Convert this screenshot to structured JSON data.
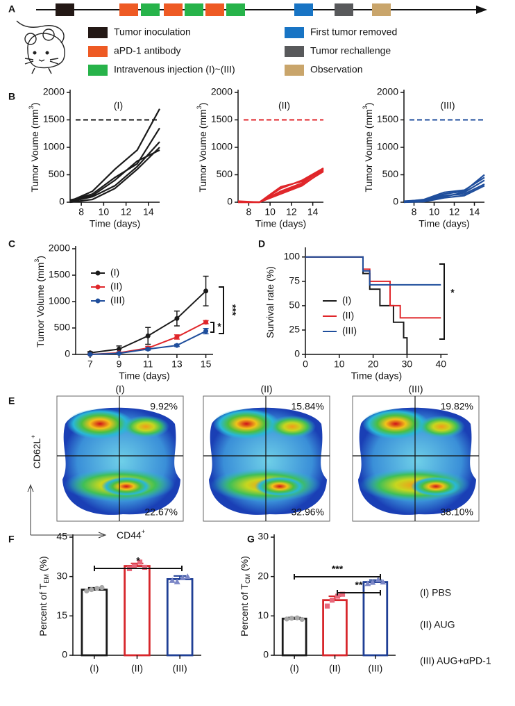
{
  "panel_labels": [
    "A",
    "B",
    "C",
    "D",
    "E",
    "F",
    "G"
  ],
  "timeline": {
    "legend": [
      {
        "label": "Tumor inoculation",
        "color": "#231815"
      },
      {
        "label": "aPD-1 antibody",
        "color": "#ee5a24"
      },
      {
        "label": "Intravenous injection (I)~(III)",
        "color": "#27b34a"
      },
      {
        "label": "First tumor removed",
        "color": "#1874c4"
      },
      {
        "label": "Tumor rechallenge",
        "color": "#58595b"
      },
      {
        "label": "Observation",
        "color": "#c9a56b"
      }
    ]
  },
  "flow": {
    "ylabel": {
      "text": "CD62L",
      "sup": "+"
    },
    "xlabel": {
      "text": "CD44",
      "sup": "+"
    },
    "panels": [
      {
        "title": "(I)",
        "color": "#1a1a1a",
        "upper": "9.92%",
        "lower": "22.67%"
      },
      {
        "title": "(II)",
        "color": "#d7262b",
        "upper": "15.84%",
        "lower": "32.96%"
      },
      {
        "title": "(III)",
        "color": "#1f3f95",
        "upper": "19.82%",
        "lower": "38.10%"
      }
    ],
    "label_color": "#d1175f"
  },
  "groups": [
    {
      "label": "(I) PBS",
      "color": "#1a1a1a"
    },
    {
      "label": "(II) AUG",
      "color": "#d7262b"
    },
    {
      "label": "(III) AUG+αPD-1",
      "color": "#1f3f95"
    }
  ],
  "chart_data": [
    {
      "type": "line",
      "title": "(I)",
      "title_color": "#1a1a1a",
      "xlabel": "Time (days)",
      "ylabel": {
        "text": "Tumor Voume (mm",
        "sup": "3",
        "end": ")"
      },
      "xlim": [
        7,
        15
      ],
      "xticks": [
        8,
        10,
        12,
        14
      ],
      "ylim": [
        0,
        2000
      ],
      "yticks": [
        0,
        500,
        1000,
        1500,
        2000
      ],
      "hline": 1500,
      "hline_color": "#1a1a1a",
      "x": [
        7,
        9,
        11,
        13,
        15
      ],
      "series": [
        {
          "color": "#1a1a1a",
          "values": [
            20,
            200,
            600,
            950,
            1700
          ]
        },
        {
          "color": "#1a1a1a",
          "values": [
            30,
            150,
            450,
            700,
            1350
          ]
        },
        {
          "color": "#1a1a1a",
          "values": [
            10,
            100,
            300,
            650,
            1100
          ]
        },
        {
          "color": "#1a1a1a",
          "values": [
            0,
            50,
            250,
            600,
            1000
          ]
        },
        {
          "color": "#1a1a1a",
          "values": [
            40,
            120,
            400,
            750,
            950
          ]
        }
      ]
    },
    {
      "type": "line",
      "title": "(II)",
      "title_color": "#d7262b",
      "xlabel": "Time (days)",
      "ylabel": {
        "text": "Tumor Voume (mm",
        "sup": "3",
        "end": ")"
      },
      "xlim": [
        7,
        15
      ],
      "xticks": [
        8,
        10,
        12,
        14
      ],
      "ylim": [
        0,
        2000
      ],
      "yticks": [
        0,
        500,
        1000,
        1500,
        2000
      ],
      "hline": 1500,
      "hline_color": "#e0262a",
      "x": [
        7,
        9,
        11,
        13,
        15
      ],
      "series": [
        {
          "color": "#e0262a",
          "values": [
            0,
            0,
            200,
            350,
            600
          ]
        },
        {
          "color": "#e0262a",
          "values": [
            10,
            0,
            250,
            400,
            620
          ]
        },
        {
          "color": "#e0262a",
          "values": [
            0,
            0,
            150,
            300,
            580
          ]
        },
        {
          "color": "#e0262a",
          "values": [
            20,
            0,
            280,
            380,
            600
          ]
        },
        {
          "color": "#e0262a",
          "values": [
            0,
            0,
            180,
            320,
            560
          ]
        }
      ]
    },
    {
      "type": "line",
      "title": "(III)",
      "title_color": "#1f3f95",
      "xlabel": "Time (days)",
      "ylabel": {
        "text": "Tumor Voume (mm",
        "sup": "3",
        "end": ")"
      },
      "xlim": [
        7,
        15
      ],
      "xticks": [
        8,
        10,
        12,
        14
      ],
      "ylim": [
        0,
        2000
      ],
      "yticks": [
        0,
        500,
        1000,
        1500,
        2000
      ],
      "hline": 1500,
      "hline_color": "#1f4e9c",
      "x": [
        7,
        9,
        11,
        13,
        15
      ],
      "series": [
        {
          "color": "#1f4e9c",
          "values": [
            0,
            30,
            150,
            200,
            500
          ]
        },
        {
          "color": "#1f4e9c",
          "values": [
            10,
            50,
            180,
            220,
            450
          ]
        },
        {
          "color": "#1f4e9c",
          "values": [
            0,
            20,
            100,
            180,
            400
          ]
        },
        {
          "color": "#1f4e9c",
          "values": [
            20,
            40,
            120,
            150,
            330
          ]
        },
        {
          "color": "#1f4e9c",
          "values": [
            0,
            10,
            80,
            120,
            300
          ]
        }
      ]
    },
    {
      "type": "line",
      "xlabel": "Time (days)",
      "ylabel": {
        "text": "Tumor Volume (mm",
        "sup": "3",
        "end": ")"
      },
      "xlim": [
        6,
        15.5
      ],
      "xticks": [
        7,
        9,
        11,
        13,
        15
      ],
      "ylim": [
        0,
        2000
      ],
      "yticks": [
        0,
        500,
        1000,
        1500,
        2000
      ],
      "legend": "upper left",
      "markers": true,
      "x": [
        7,
        9,
        11,
        13,
        15
      ],
      "series": [
        {
          "name": "(I)",
          "color": "#1a1a1a",
          "values": [
            30,
            100,
            350,
            680,
            1200
          ],
          "errors": [
            20,
            60,
            160,
            140,
            280
          ]
        },
        {
          "name": "(II)",
          "color": "#e0262a",
          "values": [
            0,
            30,
            120,
            330,
            610
          ],
          "errors": [
            5,
            10,
            30,
            40,
            30
          ]
        },
        {
          "name": "(III)",
          "color": "#1f4e9c",
          "values": [
            0,
            20,
            100,
            170,
            440
          ],
          "errors": [
            5,
            10,
            20,
            20,
            50
          ]
        }
      ],
      "annotations": [
        "*",
        "***"
      ]
    },
    {
      "type": "step",
      "xlabel": "Time (days)",
      "ylabel": {
        "text": "Survival rate (%)"
      },
      "xlim": [
        0,
        42
      ],
      "xticks": [
        0,
        10,
        20,
        30,
        40
      ],
      "ylim": [
        0,
        107
      ],
      "yticks": [
        0,
        25,
        50,
        75,
        100
      ],
      "legend": "center left",
      "series": [
        {
          "name": "(I)",
          "color": "#1a1a1a",
          "x": [
            0,
            17,
            19,
            22,
            26,
            29,
            30
          ],
          "values": [
            100,
            83,
            67,
            50,
            33,
            17,
            0
          ]
        },
        {
          "name": "(II)",
          "color": "#e0262a",
          "x": [
            0,
            17,
            19,
            25,
            28,
            40
          ],
          "values": [
            100,
            87.5,
            75,
            50,
            37.5,
            37.5
          ]
        },
        {
          "name": "(III)",
          "color": "#1f4e9c",
          "x": [
            0,
            17,
            19,
            40
          ],
          "values": [
            100,
            85.7,
            71.4,
            71.4
          ]
        }
      ],
      "annotations": [
        "*"
      ]
    },
    {
      "type": "bar",
      "ylabel": {
        "text": "Percent of T",
        "sub": "EM",
        "end": "(%)"
      },
      "categories": [
        "(I)",
        "(II)",
        "(III)"
      ],
      "category_colors": [
        "#1a1a1a",
        "#d7262b",
        "#1f3f95"
      ],
      "values": [
        25,
        34,
        29
      ],
      "errors": [
        0.7,
        1,
        1.2
      ],
      "points": [
        [
          24.5,
          25,
          25.5,
          25.8
        ],
        [
          33,
          34,
          35.5,
          33.5
        ],
        [
          28.5,
          28,
          29.5,
          30
        ]
      ],
      "point_colors": [
        "#a8a8a8",
        "#e8677a",
        "#7b86c6"
      ],
      "ylim": [
        0,
        45
      ],
      "yticks": [
        0,
        15,
        30,
        45
      ],
      "annotations": [
        "*"
      ]
    },
    {
      "type": "bar",
      "ylabel": {
        "text": "Percent of T",
        "sub": "CM",
        "end": "(%)"
      },
      "categories": [
        "(I)",
        "(II)",
        "(III)"
      ],
      "category_colors": [
        "#1a1a1a",
        "#d7262b",
        "#1f3f95"
      ],
      "values": [
        9.3,
        14,
        18.6
      ],
      "errors": [
        0.3,
        1,
        0.5
      ],
      "points": [
        [
          9.2,
          9.4,
          9.5,
          9.1
        ],
        [
          12.5,
          14,
          15,
          15.5
        ],
        [
          18.2,
          18.5,
          19.2,
          18.6
        ]
      ],
      "point_colors": [
        "#a8a8a8",
        "#e8677a",
        "#7b86c6"
      ],
      "ylim": [
        0,
        30
      ],
      "yticks": [
        0,
        10,
        20,
        30
      ],
      "annotations": [
        "***",
        "**"
      ]
    }
  ]
}
